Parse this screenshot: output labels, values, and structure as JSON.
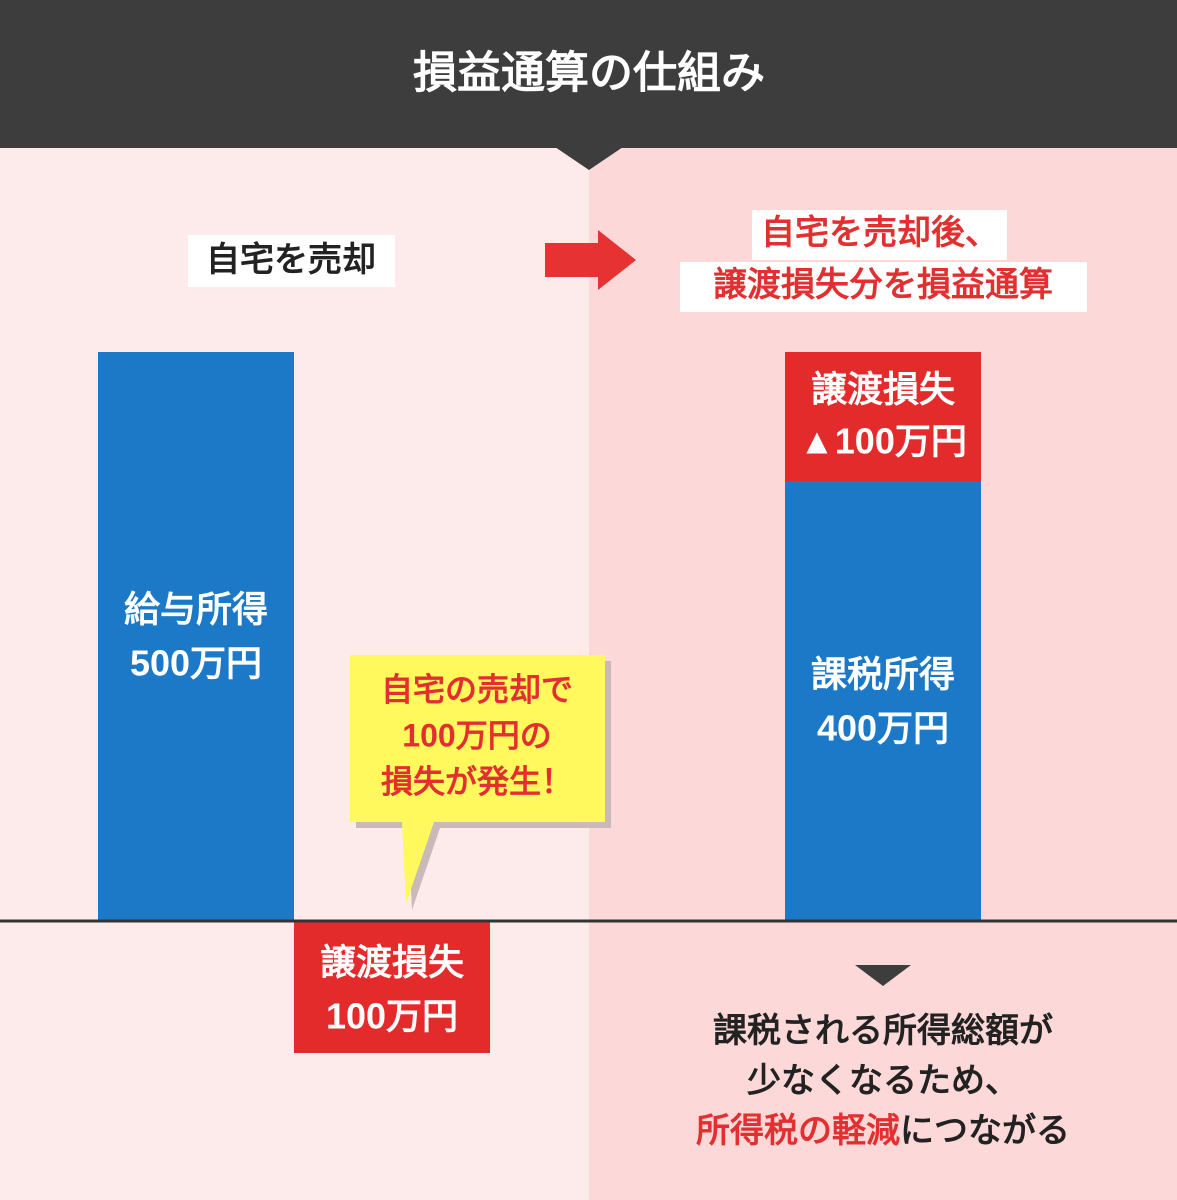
{
  "header": {
    "title": "損益通算の仕組み"
  },
  "left": {
    "caption": "自宅を売却",
    "income_bar": {
      "lines": [
        "給与所得",
        "500万円"
      ]
    },
    "loss_box": {
      "lines": [
        "譲渡損失",
        "100万円"
      ]
    },
    "bubble": {
      "lines": [
        "自宅の売却で",
        "100万円の",
        "損失が発生！"
      ]
    }
  },
  "right": {
    "caption": [
      "自宅を売却後、",
      "譲渡損失分を損益通算"
    ],
    "loss_box": {
      "lines": [
        "譲渡損失",
        "▲100万円"
      ]
    },
    "taxable_bar": {
      "lines": [
        "課税所得",
        "400万円"
      ]
    },
    "conclusion": {
      "lines": [
        "課税される所得総額が",
        "少なくなるため、"
      ],
      "highlight": "所得税の軽減",
      "rest": "につながる"
    }
  }
}
